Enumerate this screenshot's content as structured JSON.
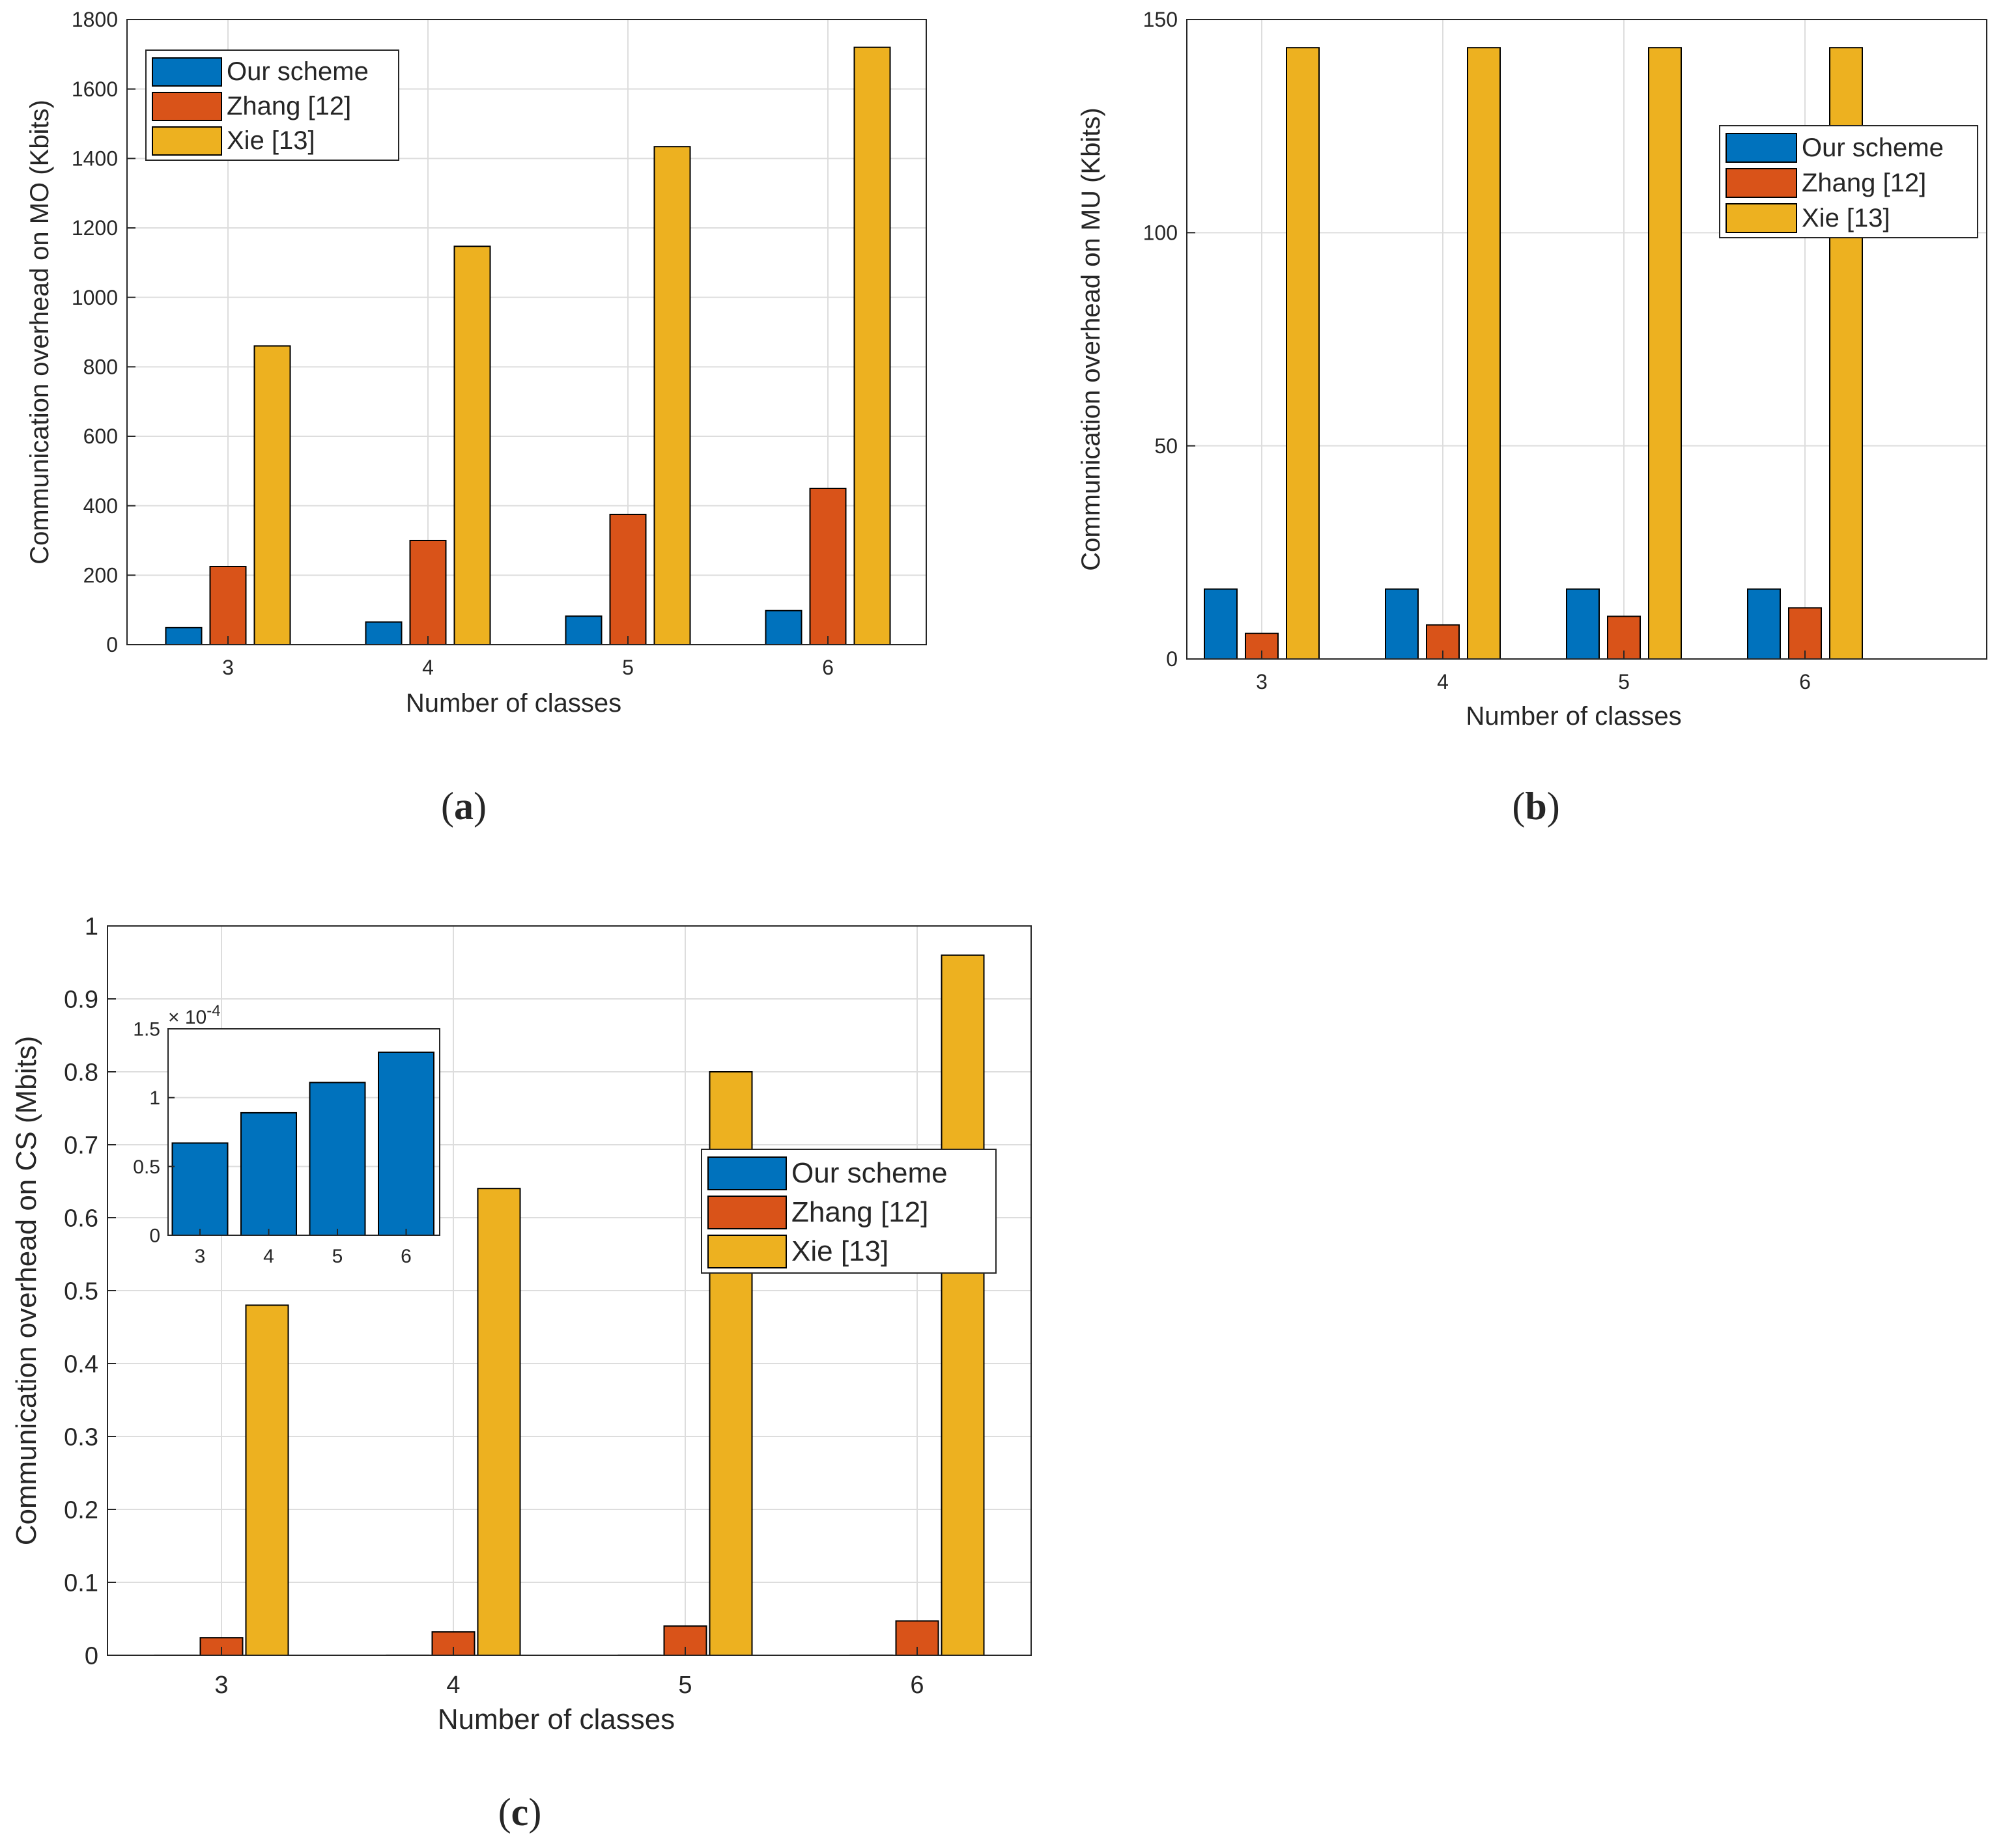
{
  "figure": {
    "colors": {
      "our_scheme": "#0072BD",
      "zhang": "#D95319",
      "xie": "#EDB120",
      "grid": "#DDDDDD",
      "axis": "#262626"
    }
  },
  "chart_data": [
    {
      "id": "a",
      "type": "bar",
      "panel_label": "a",
      "xlabel": "Number of classes",
      "ylabel": "Communication overhead on MO (Kbits)",
      "categories": [
        "3",
        "4",
        "5",
        "6"
      ],
      "ylim": [
        0,
        1800
      ],
      "yticks": [
        0,
        200,
        400,
        600,
        800,
        1000,
        1200,
        1400,
        1600,
        1800
      ],
      "grid": true,
      "legend_position": "top-left",
      "series": [
        {
          "name": "Our scheme",
          "color": "#0072BD",
          "values": [
            49,
            65,
            82,
            98
          ]
        },
        {
          "name": "Zhang [12]",
          "color": "#D95319",
          "values": [
            225,
            300,
            375,
            450
          ]
        },
        {
          "name": "Xie [13]",
          "color": "#EDB120",
          "values": [
            860,
            1147,
            1434,
            1720
          ]
        }
      ]
    },
    {
      "id": "b",
      "type": "bar",
      "panel_label": "b",
      "xlabel": "Number of classes",
      "ylabel": "Communication overhead on MU (Kbits)",
      "categories": [
        "3",
        "4",
        "5",
        "6"
      ],
      "ylim": [
        0,
        150
      ],
      "yticks": [
        0,
        50,
        100,
        150
      ],
      "grid": true,
      "legend_position": "top-right",
      "series": [
        {
          "name": "Our scheme",
          "color": "#0072BD",
          "values": [
            16.4,
            16.4,
            16.4,
            16.4
          ]
        },
        {
          "name": "Zhang [12]",
          "color": "#D95319",
          "values": [
            6,
            8,
            10,
            12
          ]
        },
        {
          "name": "Xie [13]",
          "color": "#EDB120",
          "values": [
            143.4,
            143.4,
            143.4,
            143.4
          ]
        }
      ]
    },
    {
      "id": "c",
      "type": "bar",
      "panel_label": "c",
      "xlabel": "Number of classes",
      "ylabel": "Communication overhead on CS (Mbits)",
      "categories": [
        "3",
        "4",
        "5",
        "6"
      ],
      "ylim": [
        0,
        1
      ],
      "yticks": [
        "0",
        "0.1",
        "0.2",
        "0.3",
        "0.4",
        "0.5",
        "0.6",
        "0.7",
        "0.8",
        "0.9",
        "1"
      ],
      "grid": true,
      "legend_position": "right",
      "series": [
        {
          "name": "Our scheme",
          "color": "#0072BD",
          "values": [
            6.7e-05,
            8.9e-05,
            0.000111,
            0.000133
          ]
        },
        {
          "name": "Zhang [12]",
          "color": "#D95319",
          "values": [
            0.024,
            0.032,
            0.04,
            0.047
          ]
        },
        {
          "name": "Xie [13]",
          "color": "#EDB120",
          "values": [
            0.48,
            0.64,
            0.8,
            0.96
          ]
        }
      ],
      "inset": {
        "type": "bar",
        "categories": [
          "3",
          "4",
          "5",
          "6"
        ],
        "ylim": [
          0,
          1.5
        ],
        "yticks": [
          "0",
          "0.5",
          "1",
          "1.5"
        ],
        "scale_label": "× 10",
        "scale_exponent": "-4",
        "color": "#0072BD",
        "values": [
          0.67,
          0.89,
          1.11,
          1.33
        ]
      }
    }
  ]
}
